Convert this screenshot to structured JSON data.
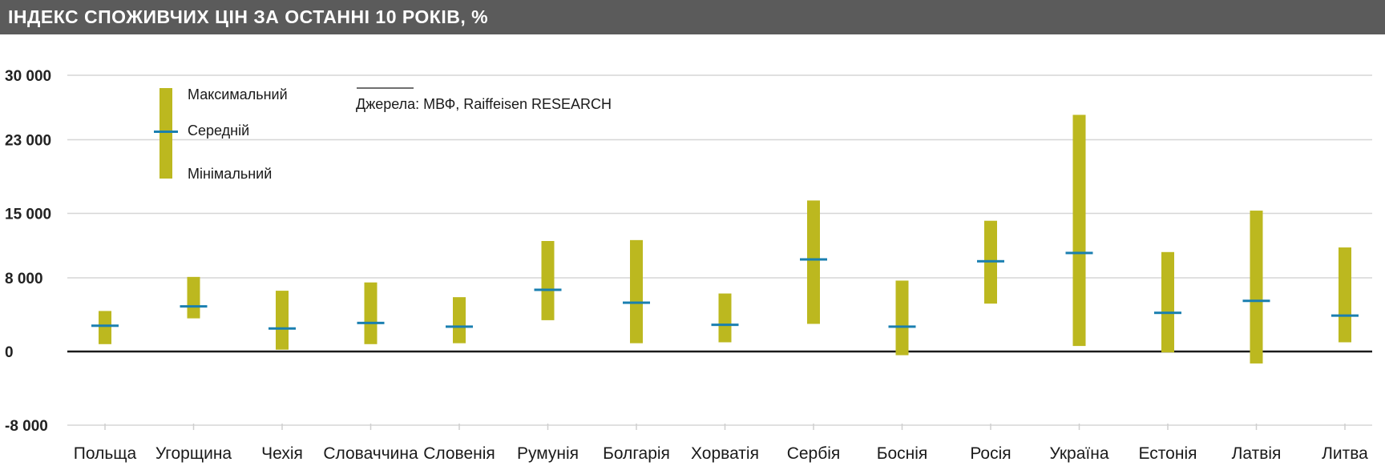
{
  "header": {
    "title": "ІНДЕКС СПОЖИВЧИХ ЦІН ЗА ОСТАННІ 10 РОКІВ, %"
  },
  "legend": {
    "max_label": "Максимальний",
    "mean_label": "Середній",
    "min_label": "Мінімальний"
  },
  "source": {
    "text": "Джерела:  МВФ, Raiffeisen RESEARCH"
  },
  "colors": {
    "bar": "#bcb81f",
    "mean": "#1a7fb0",
    "grid": "#d6d6d6",
    "zero_line": "#1a1a1a",
    "header_bg": "#5b5b5b"
  },
  "chart_data": {
    "type": "range-bar",
    "title": "ІНДЕКС СПОЖИВЧИХ ЦІН ЗА ОСТАННІ 10 РОКІВ, %",
    "ylim": [
      -8000,
      30000
    ],
    "yticks": [
      -8000,
      0,
      8000,
      15000,
      23000,
      30000
    ],
    "ytick_labels": [
      "-8 000",
      "0",
      "8 000",
      "15 000",
      "23 000",
      "30 000"
    ],
    "grid": true,
    "legend_position": "top-left",
    "categories": [
      "Польща",
      "Угорщина",
      "Чехія",
      "Словаччина",
      "Словенія",
      "Румунія",
      "Болгарія",
      "Хорватія",
      "Сербія",
      "Боснія",
      "Росія",
      "Україна",
      "Естонія",
      "Латвія",
      "Литва"
    ],
    "series": [
      {
        "name": "Максимальний",
        "values": [
          4400,
          8100,
          6600,
          7500,
          5900,
          12000,
          12100,
          6300,
          16400,
          7700,
          14200,
          25700,
          10800,
          15300,
          11300
        ]
      },
      {
        "name": "Середній",
        "values": [
          2800,
          4900,
          2500,
          3100,
          2700,
          6700,
          5300,
          2900,
          10000,
          2700,
          9800,
          10700,
          4200,
          5500,
          3900
        ]
      },
      {
        "name": "Мінімальний",
        "values": [
          800,
          3600,
          200,
          800,
          900,
          3400,
          900,
          1000,
          3000,
          -400,
          5200,
          600,
          -100,
          -1300,
          1000
        ]
      }
    ]
  }
}
